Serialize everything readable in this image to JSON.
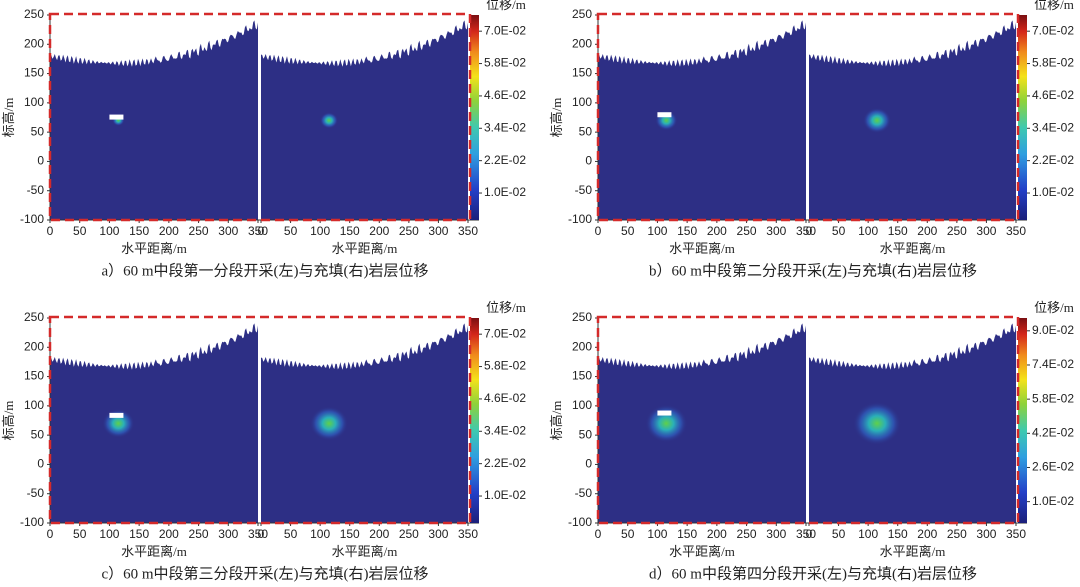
{
  "chart_data": [
    {
      "type": "heatmap",
      "title": "a）60 m中段第一分段开采(左)与充填(右)岩层位移",
      "xlabel": "水平距离/m",
      "ylabel": "标高/m",
      "colorbar_label": "位移/m",
      "xlim": [
        0,
        350
      ],
      "xticks": [
        0,
        50,
        100,
        150,
        200,
        250,
        300,
        350
      ],
      "ylim": [
        -100,
        250
      ],
      "yticks": [
        -100,
        -50,
        0,
        50,
        100,
        150,
        200,
        250
      ],
      "clim": [
        0,
        0.076
      ],
      "cticks": [
        {
          "value": 0.01,
          "label": "1.0E-02"
        },
        {
          "value": 0.022,
          "label": "2.2E-02"
        },
        {
          "value": 0.034,
          "label": "3.4E-02"
        },
        {
          "value": 0.046,
          "label": "4.6E-02"
        },
        {
          "value": 0.058,
          "label": "5.8E-02"
        },
        {
          "value": 0.07,
          "label": "7.0E-02"
        }
      ]
    },
    {
      "type": "heatmap",
      "title": "b）60 m中段第二分段开采(左)与充填(右)岩层位移",
      "xlabel": "水平距离/m",
      "ylabel": "标高/m",
      "colorbar_label": "位移/m",
      "xlim": [
        0,
        350
      ],
      "xticks": [
        0,
        50,
        100,
        150,
        200,
        250,
        300,
        350
      ],
      "ylim": [
        -100,
        250
      ],
      "yticks": [
        -100,
        -50,
        0,
        50,
        100,
        150,
        200,
        250
      ],
      "clim": [
        0,
        0.076
      ],
      "cticks": [
        {
          "value": 0.01,
          "label": "1.0E-02"
        },
        {
          "value": 0.022,
          "label": "2.2E-02"
        },
        {
          "value": 0.034,
          "label": "3.4E-02"
        },
        {
          "value": 0.046,
          "label": "4.6E-02"
        },
        {
          "value": 0.058,
          "label": "5.8E-02"
        },
        {
          "value": 0.07,
          "label": "7.0E-02"
        }
      ]
    },
    {
      "type": "heatmap",
      "title": "c）60 m中段第三分段开采(左)与充填(右)岩层位移",
      "xlabel": "水平距离/m",
      "ylabel": "标高/m",
      "colorbar_label": "位移/m",
      "xlim": [
        0,
        350
      ],
      "xticks": [
        0,
        50,
        100,
        150,
        200,
        250,
        300,
        350
      ],
      "ylim": [
        -100,
        250
      ],
      "yticks": [
        -100,
        -50,
        0,
        50,
        100,
        150,
        200,
        250
      ],
      "clim": [
        0,
        0.076
      ],
      "cticks": [
        {
          "value": 0.01,
          "label": "1.0E-02"
        },
        {
          "value": 0.022,
          "label": "2.2E-02"
        },
        {
          "value": 0.034,
          "label": "3.4E-02"
        },
        {
          "value": 0.046,
          "label": "4.6E-02"
        },
        {
          "value": 0.058,
          "label": "5.8E-02"
        },
        {
          "value": 0.07,
          "label": "7.0E-02"
        }
      ]
    },
    {
      "type": "heatmap",
      "title": "d）60 m中段第四分段开采(左)与充填(右)岩层位移",
      "xlabel": "水平距离/m",
      "ylabel": "标高/m",
      "colorbar_label": "位移/m",
      "xlim": [
        0,
        350
      ],
      "xticks": [
        0,
        50,
        100,
        150,
        200,
        250,
        300,
        350
      ],
      "ylim": [
        -100,
        250
      ],
      "yticks": [
        -100,
        -50,
        0,
        50,
        100,
        150,
        200,
        250
      ],
      "clim": [
        0,
        0.096
      ],
      "cticks": [
        {
          "value": 0.01,
          "label": "1.0E-02"
        },
        {
          "value": 0.026,
          "label": "2.6E-02"
        },
        {
          "value": 0.042,
          "label": "4.2E-02"
        },
        {
          "value": 0.058,
          "label": "5.8E-02"
        },
        {
          "value": 0.074,
          "label": "7.4E-02"
        },
        {
          "value": 0.09,
          "label": "9.0E-02"
        }
      ]
    }
  ]
}
